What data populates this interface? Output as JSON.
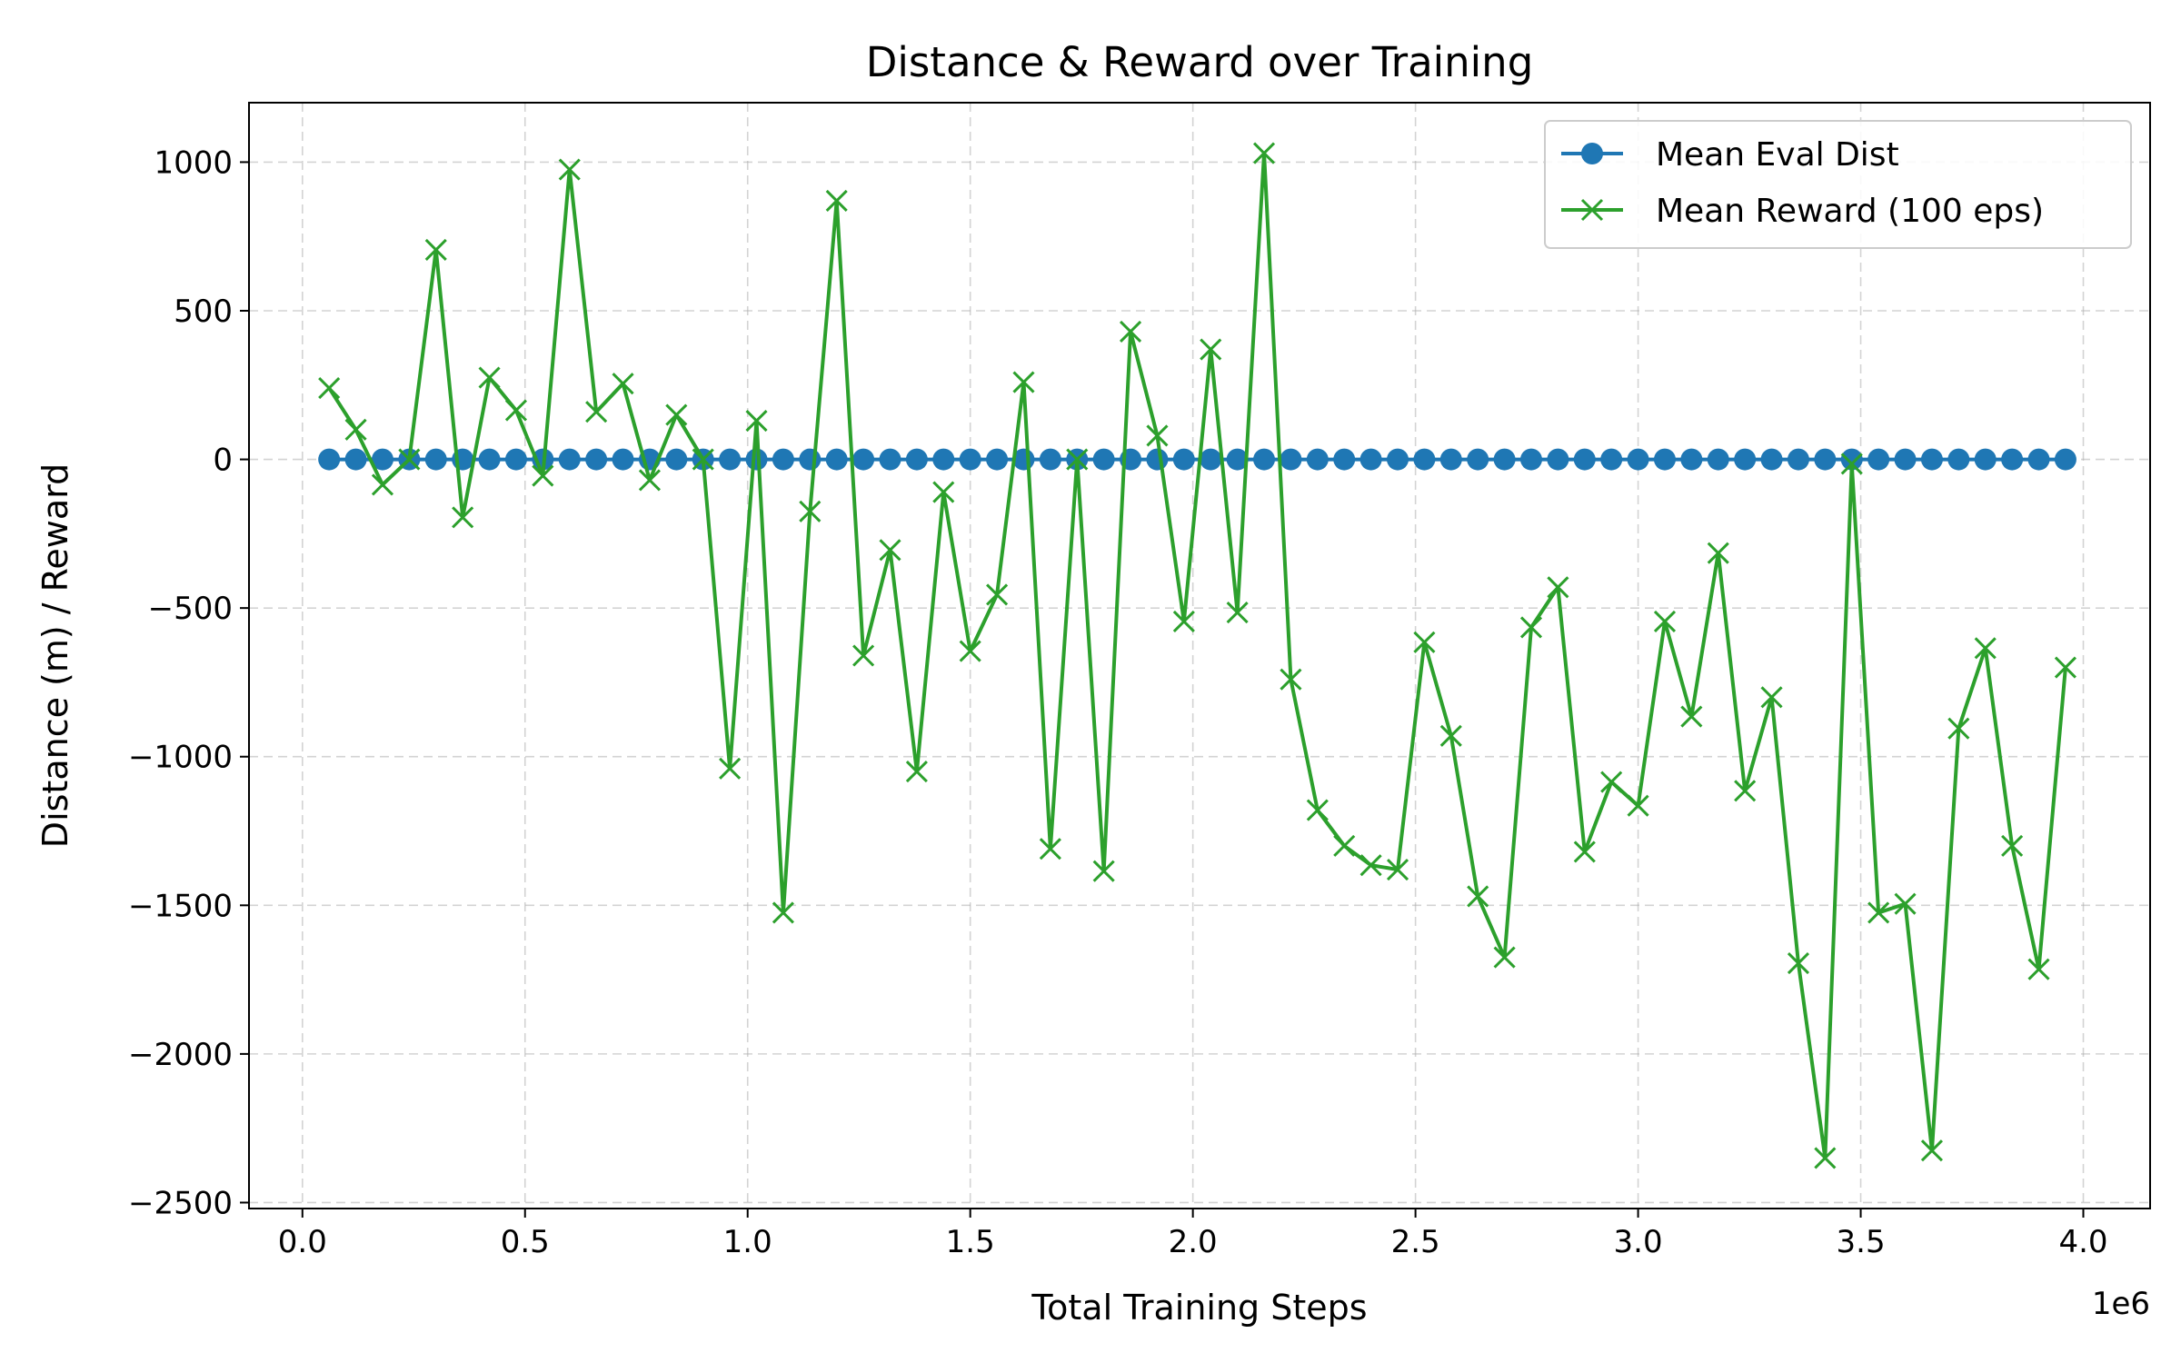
{
  "chart_data": {
    "type": "line",
    "title": "Distance & Reward over Training",
    "xlabel": "Total Training Steps",
    "ylabel": "Distance (m) / Reward",
    "x_offset_label": "1e6",
    "xlim": [
      -0.12,
      4.15
    ],
    "ylim": [
      -2520,
      1200
    ],
    "x_unit_multiplier": 1000000,
    "xticks": [
      0.0,
      0.5,
      1.0,
      1.5,
      2.0,
      2.5,
      3.0,
      3.5,
      4.0
    ],
    "xtick_labels": [
      "0.0",
      "0.5",
      "1.0",
      "1.5",
      "2.0",
      "2.5",
      "3.0",
      "3.5",
      "4.0"
    ],
    "yticks": [
      1000,
      500,
      0,
      -500,
      -1000,
      -1500,
      -2000,
      -2500
    ],
    "ytick_labels": [
      "1000",
      "500",
      "0",
      "−500",
      "−1000",
      "−1500",
      "−2000",
      "−2500"
    ],
    "grid": true,
    "legend_position": "top-right",
    "x": [
      0.06,
      0.12,
      0.18,
      0.24,
      0.3,
      0.36,
      0.42,
      0.48,
      0.54,
      0.6,
      0.66,
      0.72,
      0.78,
      0.84,
      0.9,
      0.96,
      1.02,
      1.08,
      1.14,
      1.2,
      1.26,
      1.32,
      1.38,
      1.44,
      1.5,
      1.56,
      1.62,
      1.68,
      1.74,
      1.8,
      1.86,
      1.92,
      1.98,
      2.04,
      2.1,
      2.16,
      2.22,
      2.28,
      2.34,
      2.4,
      2.46,
      2.52,
      2.58,
      2.64,
      2.7,
      2.76,
      2.82,
      2.88,
      2.94,
      3.0,
      3.06,
      3.12,
      3.18,
      3.24,
      3.3,
      3.36,
      3.42,
      3.48,
      3.54,
      3.6,
      3.66,
      3.72,
      3.78,
      3.84,
      3.9,
      3.96
    ],
    "series": [
      {
        "name": "Mean Eval Dist",
        "color": "#1f77b4",
        "marker": "circle",
        "values": [
          0,
          0,
          0,
          0,
          0,
          0,
          0,
          0,
          0,
          0,
          0,
          0,
          0,
          0,
          0,
          0,
          0,
          0,
          0,
          0,
          0,
          0,
          0,
          0,
          0,
          0,
          0,
          0,
          0,
          0,
          0,
          0,
          0,
          0,
          0,
          0,
          0,
          0,
          0,
          0,
          0,
          0,
          0,
          0,
          0,
          0,
          0,
          0,
          0,
          0,
          0,
          0,
          0,
          0,
          0,
          0,
          0,
          0,
          0,
          0,
          0,
          0,
          0,
          0,
          0,
          0
        ]
      },
      {
        "name": "Mean Reward (100 eps)",
        "color": "#2ca02c",
        "marker": "x",
        "values": [
          240,
          100,
          -85,
          0,
          705,
          -195,
          275,
          165,
          -55,
          975,
          160,
          255,
          -70,
          150,
          0,
          -1040,
          130,
          -1525,
          -175,
          870,
          -660,
          -305,
          -1050,
          -110,
          -645,
          -455,
          260,
          -1310,
          0,
          -1385,
          430,
          80,
          -545,
          370,
          -515,
          1030,
          -740,
          -1180,
          -1300,
          -1365,
          -1380,
          -615,
          -930,
          -1470,
          -1675,
          -565,
          -430,
          -1320,
          -1085,
          -1165,
          -545,
          -865,
          -315,
          -1115,
          -800,
          -1695,
          -2350,
          -15,
          -1525,
          -1495,
          -2325,
          -905,
          -635,
          -1300,
          -1715,
          -700
        ]
      }
    ]
  }
}
